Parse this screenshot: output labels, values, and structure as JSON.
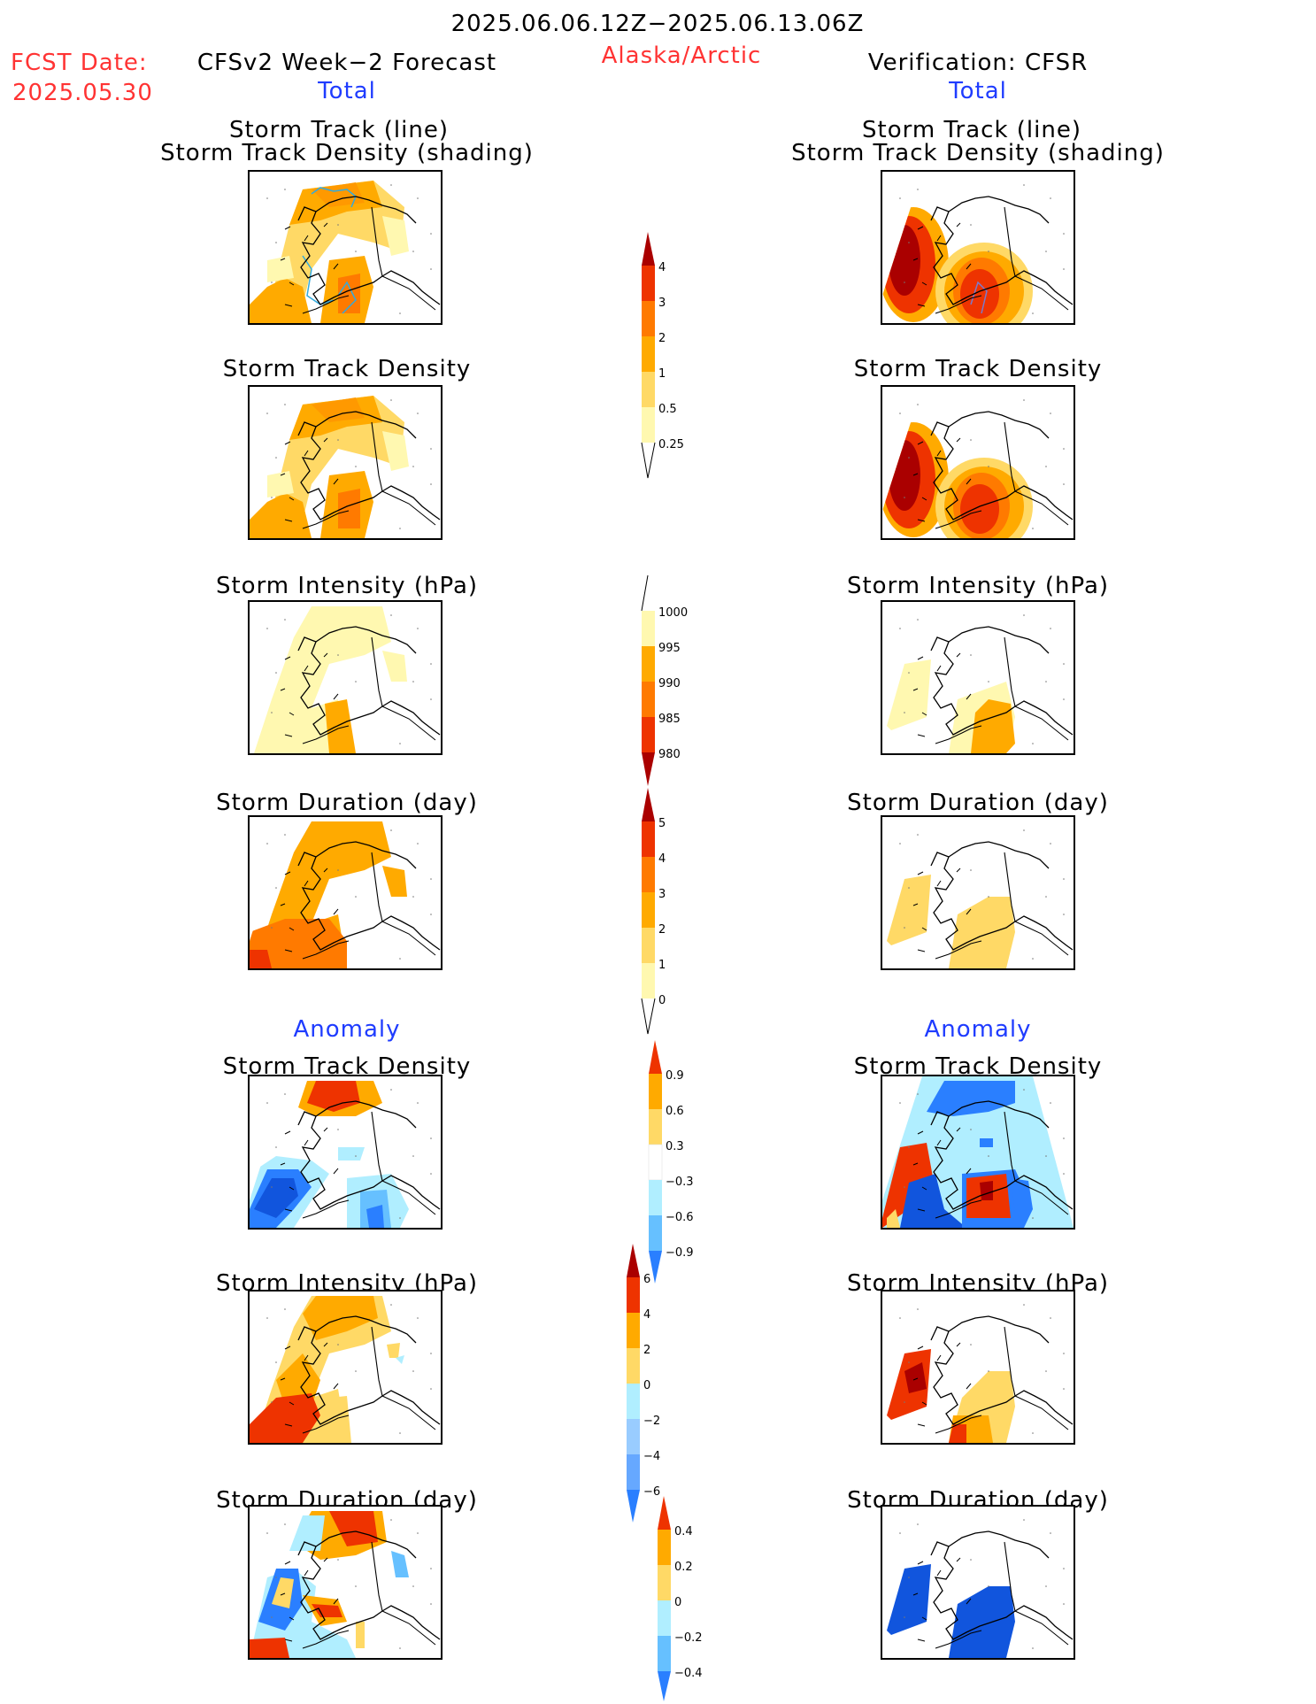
{
  "header": {
    "date_range": "2025.06.06.12Z−2025.06.13.06Z",
    "fcst_date_label": "FCST Date:",
    "fcst_date_value": "2025.05.30",
    "left_title": "CFSv2 Week−2 Forecast",
    "region": "Alaska/Arctic",
    "right_title": "Verification: CFSR",
    "total_label": "Total",
    "anomaly_label": "Anomaly"
  },
  "panel_titles": {
    "track_line": "Storm Track (line)",
    "track_density_shading": "Storm Track Density (shading)",
    "track_density": "Storm Track Density",
    "intensity": "Storm Intensity (hPa)",
    "duration": "Storm Duration (day)"
  },
  "colorbars": {
    "density_total": [
      "4",
      "3",
      "2",
      "1",
      "0.5",
      "0.25"
    ],
    "intensity_total": [
      "1000",
      "995",
      "990",
      "985",
      "980"
    ],
    "duration_total": [
      "5",
      "4",
      "3",
      "2",
      "1",
      "0"
    ],
    "density_anomaly": [
      "0.9",
      "0.6",
      "0.3",
      "−0.3",
      "−0.6",
      "−0.9"
    ],
    "intensity_anomaly": [
      "6",
      "4",
      "2",
      "0",
      "−2",
      "−4",
      "−6"
    ],
    "duration_anomaly": [
      "0.4",
      "0.2",
      "0",
      "−0.2",
      "−0.4"
    ]
  },
  "colors": {
    "c1": "#fff8b0",
    "c2": "#ffd966",
    "c3": "#ffaa00",
    "c4": "#ff7a00",
    "c5": "#ee3300",
    "c6": "#aa0000",
    "b1": "#b0eeff",
    "b2": "#66c0ff",
    "b3": "#2a7fff",
    "b4": "#1155dd"
  }
}
